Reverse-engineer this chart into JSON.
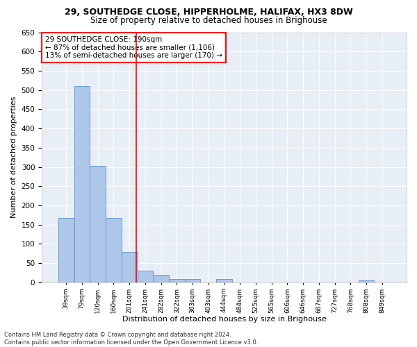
{
  "title1": "29, SOUTHEDGE CLOSE, HIPPERHOLME, HALIFAX, HX3 8DW",
  "title2": "Size of property relative to detached houses in Brighouse",
  "xlabel": "Distribution of detached houses by size in Brighouse",
  "ylabel": "Number of detached properties",
  "bins": [
    "39sqm",
    "79sqm",
    "120sqm",
    "160sqm",
    "201sqm",
    "241sqm",
    "282sqm",
    "322sqm",
    "363sqm",
    "403sqm",
    "444sqm",
    "484sqm",
    "525sqm",
    "565sqm",
    "606sqm",
    "646sqm",
    "687sqm",
    "727sqm",
    "768sqm",
    "808sqm",
    "849sqm"
  ],
  "values": [
    168,
    510,
    302,
    168,
    79,
    30,
    20,
    8,
    8,
    0,
    8,
    0,
    0,
    0,
    0,
    0,
    0,
    0,
    0,
    5,
    0
  ],
  "bar_color": "#aec6e8",
  "bar_edge_color": "#5b8fc9",
  "bar_width": 1.0,
  "vline_x": 4.45,
  "vline_color": "red",
  "annotation_text": "29 SOUTHEDGE CLOSE: 190sqm\n← 87% of detached houses are smaller (1,106)\n13% of semi-detached houses are larger (170) →",
  "annotation_box_color": "white",
  "annotation_box_edge": "red",
  "ylim": [
    0,
    650
  ],
  "yticks": [
    0,
    50,
    100,
    150,
    200,
    250,
    300,
    350,
    400,
    450,
    500,
    550,
    600,
    650
  ],
  "bg_color": "#e8eef5",
  "footer": "Contains HM Land Registry data © Crown copyright and database right 2024.\nContains public sector information licensed under the Open Government Licence v3.0.",
  "title1_fontsize": 9,
  "title2_fontsize": 8.5,
  "xlabel_fontsize": 8,
  "ylabel_fontsize": 8,
  "annotation_fontsize": 7.5
}
